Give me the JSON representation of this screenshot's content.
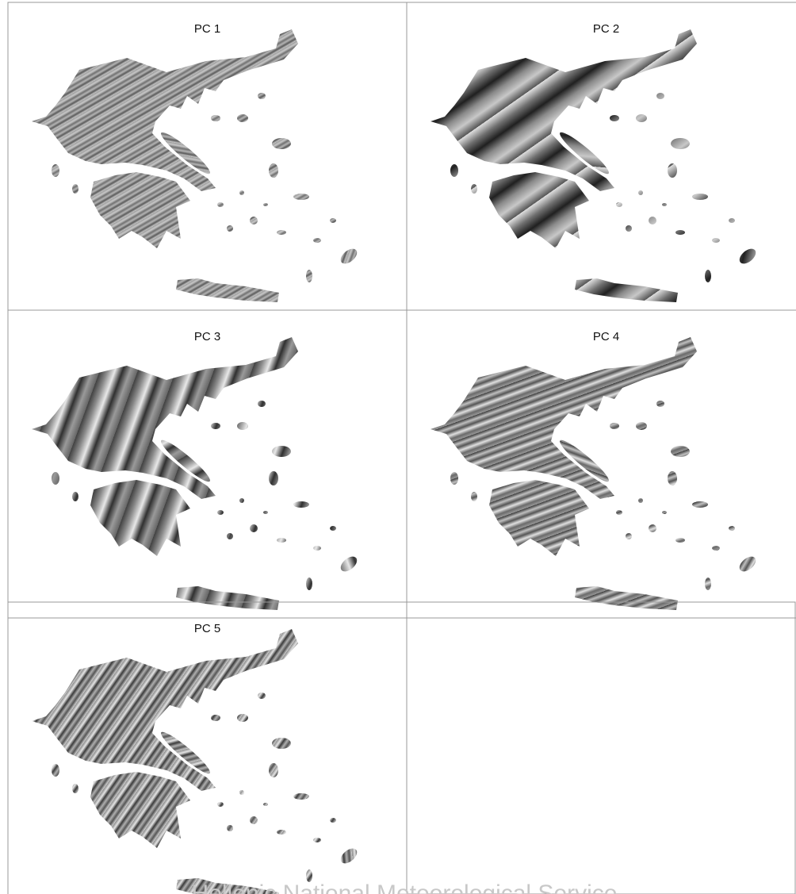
{
  "panels": [
    {
      "title": "PC 1"
    },
    {
      "title": "PC 2"
    },
    {
      "title": "PC 3"
    },
    {
      "title": "PC 4"
    },
    {
      "title": "PC 5"
    }
  ],
  "footer": "Hellenic National Meteorological Service"
}
